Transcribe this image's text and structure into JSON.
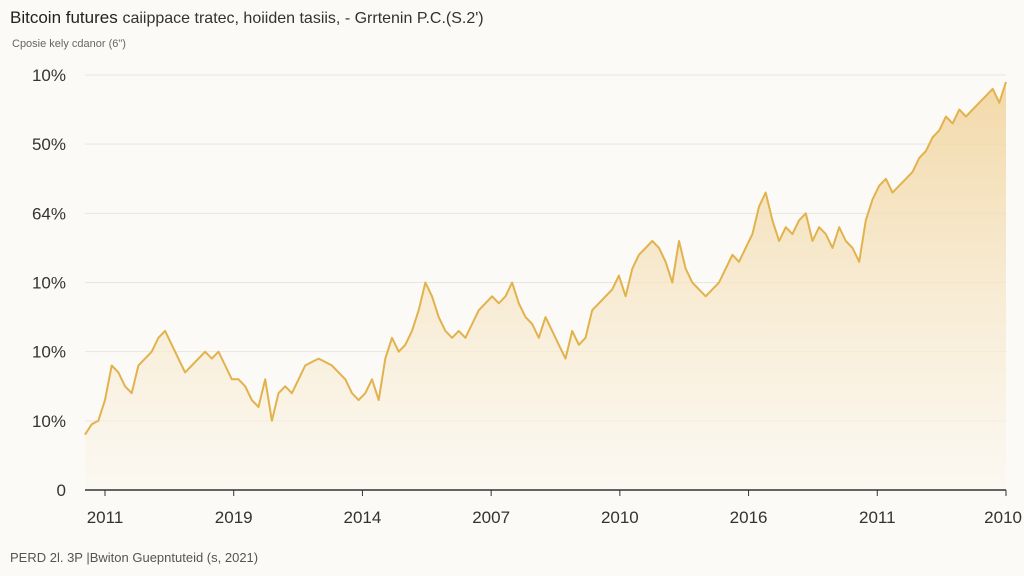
{
  "header": {
    "title": "Bitcoin futures",
    "title_rest": "caiippace tratec, hoiiden tasiis, - Grrtenin P.C.(S.2')",
    "subtitle": "Cposie kely cdanor (6\")"
  },
  "footer": {
    "source": "PERD 2l. 3P |Bwiton Guepntuteid (s, 2021)"
  },
  "colors": {
    "line": "#e2b24c",
    "fill_top": "#f1d39a",
    "fill_bottom": "#fbf7ee",
    "grid": "#e9e6df",
    "axis": "#333333"
  },
  "chart_data": {
    "type": "area",
    "title": "Bitcoin futures caiippace tratec, hoiiden tasiis, - Grrtenin P.C.(S.2')",
    "xlabel": "",
    "ylabel": "",
    "grid": true,
    "ylim": [
      0,
      6
    ],
    "y_ticks": [
      {
        "value": 6,
        "label": "10%"
      },
      {
        "value": 5,
        "label": "50%"
      },
      {
        "value": 4,
        "label": "64%"
      },
      {
        "value": 3,
        "label": "10%"
      },
      {
        "value": 2,
        "label": "10%"
      },
      {
        "value": 1,
        "label": "10%"
      },
      {
        "value": 0,
        "label": "0"
      }
    ],
    "x_ticks": [
      "2011",
      "2019",
      "2014",
      "2007",
      "2010",
      "2016",
      "2011",
      "2010"
    ],
    "series": [
      {
        "values": [
          0.8,
          0.95,
          1.0,
          1.3,
          1.8,
          1.7,
          1.5,
          1.4,
          1.8,
          1.9,
          2.0,
          2.2,
          2.3,
          2.1,
          1.9,
          1.7,
          1.8,
          1.9,
          2.0,
          1.9,
          2.0,
          1.8,
          1.6,
          1.6,
          1.5,
          1.3,
          1.2,
          1.6,
          1.0,
          1.4,
          1.5,
          1.4,
          1.6,
          1.8,
          1.85,
          1.9,
          1.85,
          1.8,
          1.7,
          1.6,
          1.4,
          1.3,
          1.4,
          1.6,
          1.3,
          1.9,
          2.2,
          2.0,
          2.1,
          2.3,
          2.6,
          3.0,
          2.8,
          2.5,
          2.3,
          2.2,
          2.3,
          2.2,
          2.4,
          2.6,
          2.7,
          2.8,
          2.7,
          2.8,
          3.0,
          2.7,
          2.5,
          2.4,
          2.2,
          2.5,
          2.3,
          2.1,
          1.9,
          2.3,
          2.1,
          2.2,
          2.6,
          2.7,
          2.8,
          2.9,
          3.1,
          2.8,
          3.2,
          3.4,
          3.5,
          3.6,
          3.5,
          3.3,
          3.0,
          3.6,
          3.2,
          3.0,
          2.9,
          2.8,
          2.9,
          3.0,
          3.2,
          3.4,
          3.3,
          3.5,
          3.7,
          4.1,
          4.3,
          3.9,
          3.6,
          3.8,
          3.7,
          3.9,
          4.0,
          3.6,
          3.8,
          3.7,
          3.5,
          3.8,
          3.6,
          3.5,
          3.3,
          3.9,
          4.2,
          4.4,
          4.5,
          4.3,
          4.4,
          4.5,
          4.6,
          4.8,
          4.9,
          5.1,
          5.2,
          5.4,
          5.3,
          5.5,
          5.4,
          5.5,
          5.6,
          5.7,
          5.8,
          5.6,
          5.9
        ]
      }
    ]
  }
}
